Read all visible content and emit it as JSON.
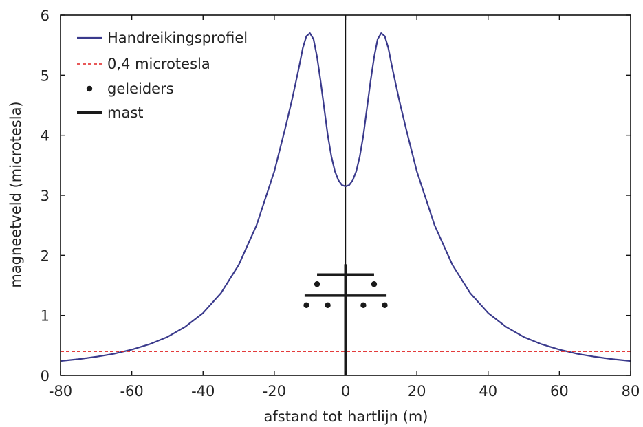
{
  "chart_data": {
    "type": "line",
    "xlabel": "afstand tot hartlijn (m)",
    "ylabel": "magneetveld (microtesla)",
    "xlim": [
      -80,
      80
    ],
    "ylim": [
      0,
      6
    ],
    "x_ticks": [
      "-80",
      "-60",
      "-40",
      "-20",
      "0",
      "20",
      "40",
      "60",
      "80"
    ],
    "y_ticks": [
      "0",
      "1",
      "2",
      "3",
      "4",
      "5",
      "6"
    ],
    "grid": false,
    "legend_position": "top-left",
    "legend": [
      {
        "label": "Handreikingsprofiel",
        "kind": "line",
        "color": "#3a3a8c"
      },
      {
        "label": "0,4 microtesla",
        "kind": "dashed-line",
        "color": "#e02020"
      },
      {
        "label": "geleiders",
        "kind": "marker",
        "color": "#1a1a1a"
      },
      {
        "label": "mast",
        "kind": "thick-line",
        "color": "#1a1a1a"
      }
    ],
    "series": [
      {
        "name": "Handreikingsprofiel",
        "color": "#3a3a8c",
        "points": [
          [
            -80,
            0.24
          ],
          [
            -75,
            0.27
          ],
          [
            -70,
            0.31
          ],
          [
            -65,
            0.36
          ],
          [
            -60,
            0.43
          ],
          [
            -55,
            0.52
          ],
          [
            -50,
            0.64
          ],
          [
            -45,
            0.81
          ],
          [
            -40,
            1.04
          ],
          [
            -35,
            1.37
          ],
          [
            -30,
            1.84
          ],
          [
            -25,
            2.5
          ],
          [
            -20,
            3.4
          ],
          [
            -17,
            4.1
          ],
          [
            -15,
            4.6
          ],
          [
            -13,
            5.15
          ],
          [
            -12,
            5.45
          ],
          [
            -11,
            5.65
          ],
          [
            -10,
            5.7
          ],
          [
            -9,
            5.6
          ],
          [
            -8,
            5.3
          ],
          [
            -7,
            4.9
          ],
          [
            -6,
            4.45
          ],
          [
            -5,
            4.0
          ],
          [
            -4,
            3.65
          ],
          [
            -3,
            3.4
          ],
          [
            -2,
            3.25
          ],
          [
            -1,
            3.17
          ],
          [
            0,
            3.15
          ],
          [
            1,
            3.17
          ],
          [
            2,
            3.25
          ],
          [
            3,
            3.4
          ],
          [
            4,
            3.65
          ],
          [
            5,
            4.0
          ],
          [
            6,
            4.45
          ],
          [
            7,
            4.9
          ],
          [
            8,
            5.3
          ],
          [
            9,
            5.6
          ],
          [
            10,
            5.7
          ],
          [
            11,
            5.65
          ],
          [
            12,
            5.45
          ],
          [
            13,
            5.15
          ],
          [
            15,
            4.6
          ],
          [
            17,
            4.1
          ],
          [
            20,
            3.4
          ],
          [
            25,
            2.5
          ],
          [
            30,
            1.84
          ],
          [
            35,
            1.37
          ],
          [
            40,
            1.04
          ],
          [
            45,
            0.81
          ],
          [
            50,
            0.64
          ],
          [
            55,
            0.52
          ],
          [
            60,
            0.43
          ],
          [
            65,
            0.36
          ],
          [
            70,
            0.31
          ],
          [
            75,
            0.27
          ],
          [
            80,
            0.24
          ]
        ]
      },
      {
        "name": "0,4 microtesla",
        "color": "#e02020",
        "style": "dashed",
        "points": [
          [
            -80,
            0.4
          ],
          [
            80,
            0.4
          ]
        ]
      }
    ],
    "mast": {
      "x": 0,
      "y_range": [
        0,
        1.85
      ],
      "crossarms": [
        {
          "y": 1.68,
          "x_range": [
            -8,
            8
          ]
        },
        {
          "y": 1.33,
          "x_range": [
            -11.5,
            11.5
          ]
        }
      ]
    },
    "conductors": [
      {
        "x": -8,
        "y": 1.52
      },
      {
        "x": 8,
        "y": 1.52
      },
      {
        "x": -11,
        "y": 1.17
      },
      {
        "x": -5,
        "y": 1.17
      },
      {
        "x": 5,
        "y": 1.17
      },
      {
        "x": 11,
        "y": 1.17
      }
    ],
    "center_line": {
      "x": 0
    }
  }
}
